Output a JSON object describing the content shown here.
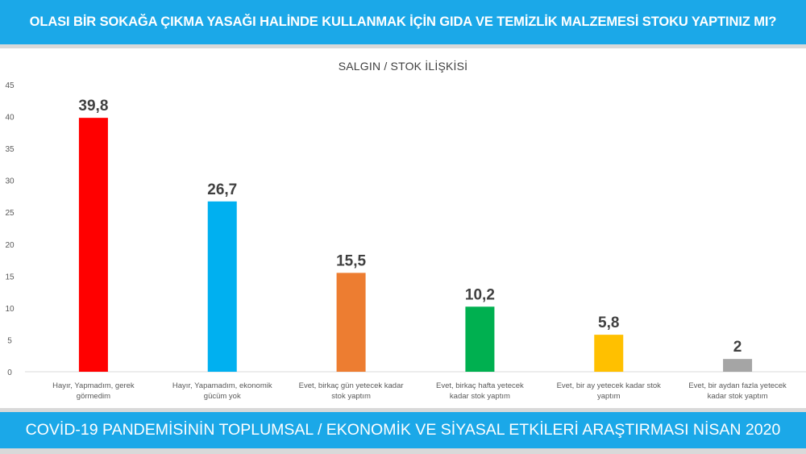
{
  "header": {
    "title": "OLASI BİR SOKAĞA ÇIKMA YASAĞI HALİNDE KULLANMAK İÇİN GIDA VE TEMİZLİK MALZEMESİ STOKU YAPTINIZ MI?"
  },
  "footer": {
    "text": "COVİD-19 PANDEMİSİNİN TOPLUMSAL / EKONOMİK VE SİYASAL ETKİLERİ ARAŞTIRMASI NİSAN 2020"
  },
  "colors": {
    "banner": "#1ba8e8"
  },
  "chart_data": {
    "type": "bar",
    "title": "SALGIN / STOK İLİŞKİSİ",
    "categories": [
      [
        "Hayır, Yapmadım, gerek",
        "görmedim"
      ],
      [
        "Hayır, Yapamadım, ekonomik",
        "gücüm yok"
      ],
      [
        "Evet, birkaç gün yetecek kadar",
        "stok yaptım"
      ],
      [
        "Evet, birkaç hafta yetecek",
        "kadar stok yaptım"
      ],
      [
        "Evet, bir ay yetecek kadar stok",
        "yaptım"
      ],
      [
        "Evet, bir aydan fazla yetecek",
        "kadar stok yaptım"
      ]
    ],
    "values": [
      39.8,
      26.7,
      15.5,
      10.2,
      5.8,
      2
    ],
    "value_labels": [
      "39,8",
      "26,7",
      "15,5",
      "10,2",
      "5,8",
      "2"
    ],
    "colors": [
      "#ff0000",
      "#00b0f0",
      "#ed7d31",
      "#00b050",
      "#ffc000",
      "#a5a5a5"
    ],
    "yticks": [
      "0",
      "5",
      "10",
      "15",
      "20",
      "25",
      "30",
      "35",
      "40",
      "45"
    ],
    "ylim": [
      0,
      45
    ],
    "grid": false,
    "legend": "none"
  }
}
